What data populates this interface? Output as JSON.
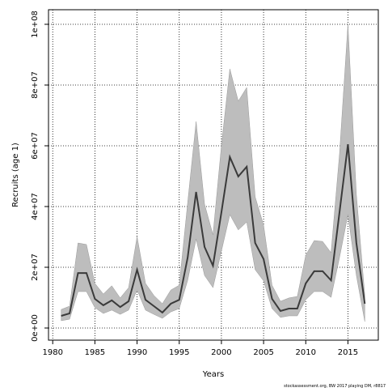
{
  "chart_data": {
    "type": "line",
    "xlabel": "Years",
    "ylabel": "Recruits (age 1)",
    "note": "stockassessment.org, BW 2017 playing DM, r8817",
    "x": [
      1981,
      1982,
      1983,
      1984,
      1985,
      1986,
      1987,
      1988,
      1989,
      1990,
      1991,
      1992,
      1993,
      1994,
      1995,
      1996,
      1997,
      1998,
      1999,
      2000,
      2001,
      2002,
      2003,
      2004,
      2005,
      2006,
      2007,
      2008,
      2009,
      2010,
      2011,
      2012,
      2013,
      2014,
      2015,
      2016,
      2017
    ],
    "values": [
      4000000,
      4800000,
      18100000,
      18100000,
      9600000,
      7500000,
      9100000,
      6900000,
      8800000,
      19200000,
      9300000,
      7200000,
      5100000,
      8000000,
      9300000,
      23200000,
      44800000,
      26700000,
      20500000,
      38100000,
      56300000,
      49900000,
      53100000,
      28000000,
      22700000,
      9600000,
      5600000,
      6400000,
      6400000,
      14700000,
      18700000,
      18700000,
      15700000,
      38100000,
      60500000,
      28000000,
      8000000
    ],
    "upper": [
      6100000,
      7200000,
      28000000,
      27500000,
      14700000,
      11200000,
      13900000,
      9900000,
      13300000,
      30100000,
      14700000,
      10700000,
      8000000,
      12500000,
      14100000,
      41300000,
      68000000,
      40800000,
      30700000,
      60000000,
      85300000,
      74700000,
      79200000,
      43200000,
      33900000,
      14100000,
      8800000,
      9900000,
      10400000,
      24000000,
      28800000,
      28500000,
      24800000,
      57300000,
      100000000,
      44000000,
      10700000
    ],
    "lower": [
      2400000,
      2900000,
      12000000,
      12000000,
      6700000,
      4800000,
      5900000,
      4500000,
      5900000,
      12500000,
      5900000,
      4500000,
      3200000,
      5300000,
      6400000,
      15700000,
      29300000,
      17300000,
      13300000,
      25300000,
      37300000,
      32300000,
      34900000,
      19200000,
      15500000,
      6400000,
      3500000,
      4000000,
      4000000,
      9300000,
      12000000,
      12000000,
      10100000,
      23200000,
      37300000,
      17300000,
      2100000
    ],
    "color": "#3a3a3a",
    "band_color": "#bdbdbd",
    "xlim": [
      1979.5,
      2018.6
    ],
    "xticks": [
      1980,
      1985,
      1990,
      1995,
      2000,
      2005,
      2010,
      2015
    ],
    "ylim": [
      -4000000,
      104800000
    ],
    "yticks": [
      {
        "value": 0,
        "label": "0e+00"
      },
      {
        "value": 20000000,
        "label": "2e+07"
      },
      {
        "value": 40000000,
        "label": "4e+07"
      },
      {
        "value": 60000000,
        "label": "6e+07"
      },
      {
        "value": 80000000,
        "label": "8e+07"
      },
      {
        "value": 100000000,
        "label": "1e+08"
      }
    ],
    "grid": true
  }
}
